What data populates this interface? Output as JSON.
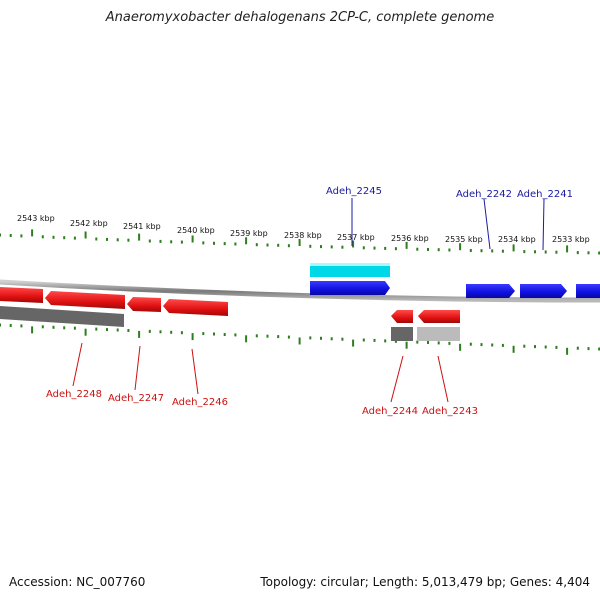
{
  "title": "Anaeromyxobacter dehalogenans 2CP-C, complete genome",
  "footer": {
    "accession": "Accession: NC_007760",
    "summary": "Topology: circular; Length: 5,013,479 bp; Genes: 4,404"
  },
  "colors": {
    "forward_gene": "#1010e0",
    "reverse_gene": "#e01010",
    "forward_label": "#1a1aa0",
    "reverse_label": "#cc1111",
    "cyan_feature": "#00d8e8",
    "dark_feature": "#666666",
    "light_feature": "#bbbbbb",
    "backbone": "#888888",
    "ticks": "#2e7d1e"
  },
  "ticks": [
    {
      "label": "2543 kbp"
    },
    {
      "label": "2542 kbp"
    },
    {
      "label": "2541 kbp"
    },
    {
      "label": "2540 kbp"
    },
    {
      "label": "2539 kbp"
    },
    {
      "label": "2538 kbp"
    },
    {
      "label": "2537 kbp"
    },
    {
      "label": "2536 kbp"
    },
    {
      "label": "2535 kbp"
    },
    {
      "label": "2534 kbp"
    },
    {
      "label": "2533 kbp"
    }
  ],
  "forward_genes": [
    {
      "name": "Adeh_2245"
    },
    {
      "name": "Adeh_2242"
    },
    {
      "name": "Adeh_2241"
    }
  ],
  "reverse_genes": [
    {
      "name": "Adeh_2248"
    },
    {
      "name": "Adeh_2247"
    },
    {
      "name": "Adeh_2246"
    },
    {
      "name": "Adeh_2244"
    },
    {
      "name": "Adeh_2243"
    }
  ]
}
